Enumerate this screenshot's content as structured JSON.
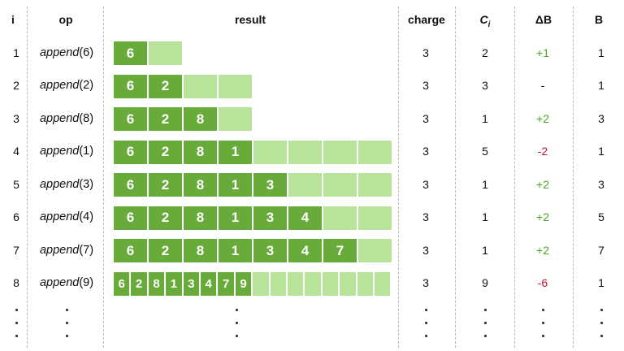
{
  "headers": {
    "i": "i",
    "op": "op",
    "result": "result",
    "charge": "charge",
    "ci": "C",
    "ci_sub": "i",
    "db": "ΔB",
    "b": "B"
  },
  "op_name": "append",
  "colors": {
    "filled": "#69ab3a",
    "empty": "#b7e39a",
    "positive": "#4aa626",
    "negative": "#c2182c",
    "divider": "#b9b9b9"
  },
  "rows": [
    {
      "i": "1",
      "arg": "(6)",
      "charge": "3",
      "ci": "2",
      "db": "+1",
      "db_sign": "pos",
      "b": "1",
      "values": [
        "6"
      ],
      "capacity": 2
    },
    {
      "i": "2",
      "arg": "(2)",
      "charge": "3",
      "ci": "3",
      "db": "-",
      "db_sign": "none",
      "b": "1",
      "values": [
        "6",
        "2"
      ],
      "capacity": 4
    },
    {
      "i": "3",
      "arg": "(8)",
      "charge": "3",
      "ci": "1",
      "db": "+2",
      "db_sign": "pos",
      "b": "3",
      "values": [
        "6",
        "2",
        "8"
      ],
      "capacity": 4
    },
    {
      "i": "4",
      "arg": "(1)",
      "charge": "3",
      "ci": "5",
      "db": "-2",
      "db_sign": "neg",
      "b": "1",
      "values": [
        "6",
        "2",
        "8",
        "1"
      ],
      "capacity": 8
    },
    {
      "i": "5",
      "arg": "(3)",
      "charge": "3",
      "ci": "1",
      "db": "+2",
      "db_sign": "pos",
      "b": "3",
      "values": [
        "6",
        "2",
        "8",
        "1",
        "3"
      ],
      "capacity": 8
    },
    {
      "i": "6",
      "arg": "(4)",
      "charge": "3",
      "ci": "1",
      "db": "+2",
      "db_sign": "pos",
      "b": "5",
      "values": [
        "6",
        "2",
        "8",
        "1",
        "3",
        "4"
      ],
      "capacity": 8
    },
    {
      "i": "7",
      "arg": "(7)",
      "charge": "3",
      "ci": "1",
      "db": "+2",
      "db_sign": "pos",
      "b": "7",
      "values": [
        "6",
        "2",
        "8",
        "1",
        "3",
        "4",
        "7"
      ],
      "capacity": 8
    },
    {
      "i": "8",
      "arg": "(9)",
      "charge": "3",
      "ci": "9",
      "db": "-6",
      "db_sign": "neg",
      "b": "1",
      "values": [
        "6",
        "2",
        "8",
        "1",
        "3",
        "4",
        "7",
        "9"
      ],
      "capacity": 16
    }
  ]
}
